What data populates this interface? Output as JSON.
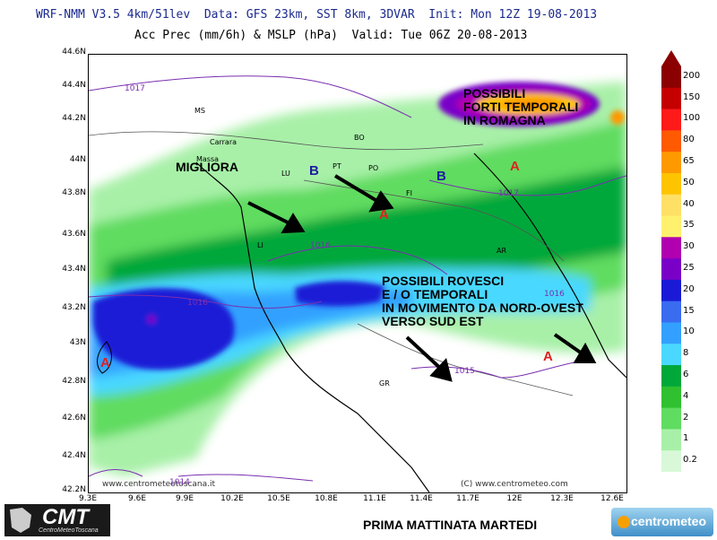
{
  "header": {
    "line1": "WRF-NMM V3.5 4km/51lev  Data: GFS 23km, SST 8km, 3DVAR  Init: Mon 12Z 19-08-2013",
    "line2": "Acc Prec (mm/6h) & MSLP (hPa)  Valid: Tue 06Z 20-08-2013"
  },
  "axes": {
    "lat_labels": [
      "44.6N",
      "44.4N",
      "44.2N",
      "44N",
      "43.8N",
      "43.6N",
      "43.4N",
      "43.2N",
      "43N",
      "42.8N",
      "42.6N",
      "42.4N",
      "42.2N"
    ],
    "lon_labels": [
      "9.3E",
      "9.6E",
      "9.9E",
      "10.2E",
      "10.5E",
      "10.8E",
      "11.1E",
      "11.4E",
      "11.7E",
      "12E",
      "12.3E",
      "12.6E"
    ]
  },
  "colorbar": {
    "labels": [
      "200",
      "150",
      "100",
      "80",
      "65",
      "50",
      "40",
      "35",
      "30",
      "25",
      "20",
      "15",
      "10",
      "8",
      "6",
      "4",
      "2",
      "1",
      "0.2"
    ],
    "colors": [
      "#8b0000",
      "#c40000",
      "#ff1a1a",
      "#ff5a00",
      "#ff9900",
      "#ffc400",
      "#ffe066",
      "#fff06e",
      "#b000b0",
      "#7a00c8",
      "#1a1ad6",
      "#3a6cf0",
      "#33a0ff",
      "#4ad8ff",
      "#00a83a",
      "#30c030",
      "#60dc60",
      "#a8f0a8",
      "#d8f8d8"
    ]
  },
  "annotations": {
    "temporali_romagna": [
      "POSSIBILI",
      "FORTI TEMPORALI",
      "IN ROMAGNA"
    ],
    "migliora": "MIGLIORA",
    "rovesci": [
      "POSSIBILI ROVESCI",
      "E / O TEMPORALI",
      "IN MOVIMENTO DA NORD-OVEST",
      "VERSO SUD EST"
    ]
  },
  "pressure_markers": [
    {
      "type": "B",
      "color": "#1c1ca0"
    },
    {
      "type": "B",
      "color": "#1c1ca0"
    },
    {
      "type": "A",
      "color": "#e02020"
    },
    {
      "type": "A",
      "color": "#e02020"
    },
    {
      "type": "A",
      "color": "#e02020"
    },
    {
      "type": "A",
      "color": "#e02020"
    }
  ],
  "cities": [
    "MS",
    "Carrara",
    "Massa",
    "LU",
    "PT",
    "PO",
    "FI",
    "LI",
    "AR",
    "GR",
    "BO"
  ],
  "isobars": [
    "1017",
    "1017",
    "1016",
    "1016",
    "1016",
    "1015",
    "1014"
  ],
  "watermarks": [
    "www.centrometeotoscana.it",
    "(C) www.centrometeo.com"
  ],
  "footer": {
    "title": "PRIMA MATTINATA MARTEDI",
    "logo_left": "CMT",
    "logo_left_sub": "CentroMeteoToscana",
    "logo_right": "centrometeo"
  }
}
